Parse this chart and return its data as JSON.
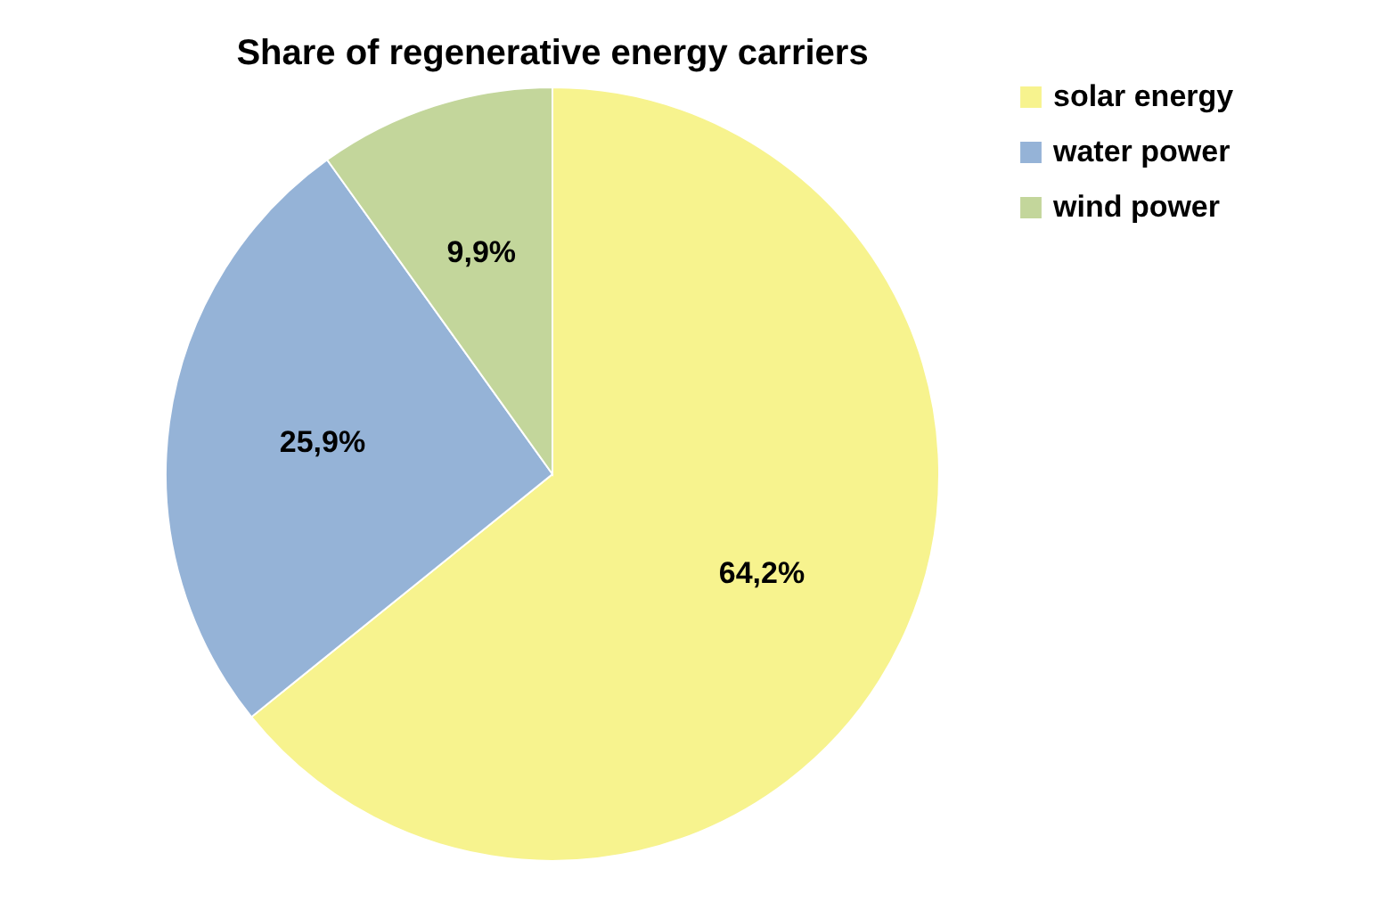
{
  "chart_data": {
    "type": "pie",
    "title": "Share of regenerative energy carriers",
    "categories": [
      "solar energy",
      "water power",
      "wind power"
    ],
    "values": [
      64.2,
      25.9,
      9.9
    ],
    "colors": [
      "#f7f38e",
      "#95b3d7",
      "#c3d69b"
    ],
    "value_labels": [
      "64,2%",
      "25,9%",
      "9,9%"
    ],
    "legend": "right"
  }
}
